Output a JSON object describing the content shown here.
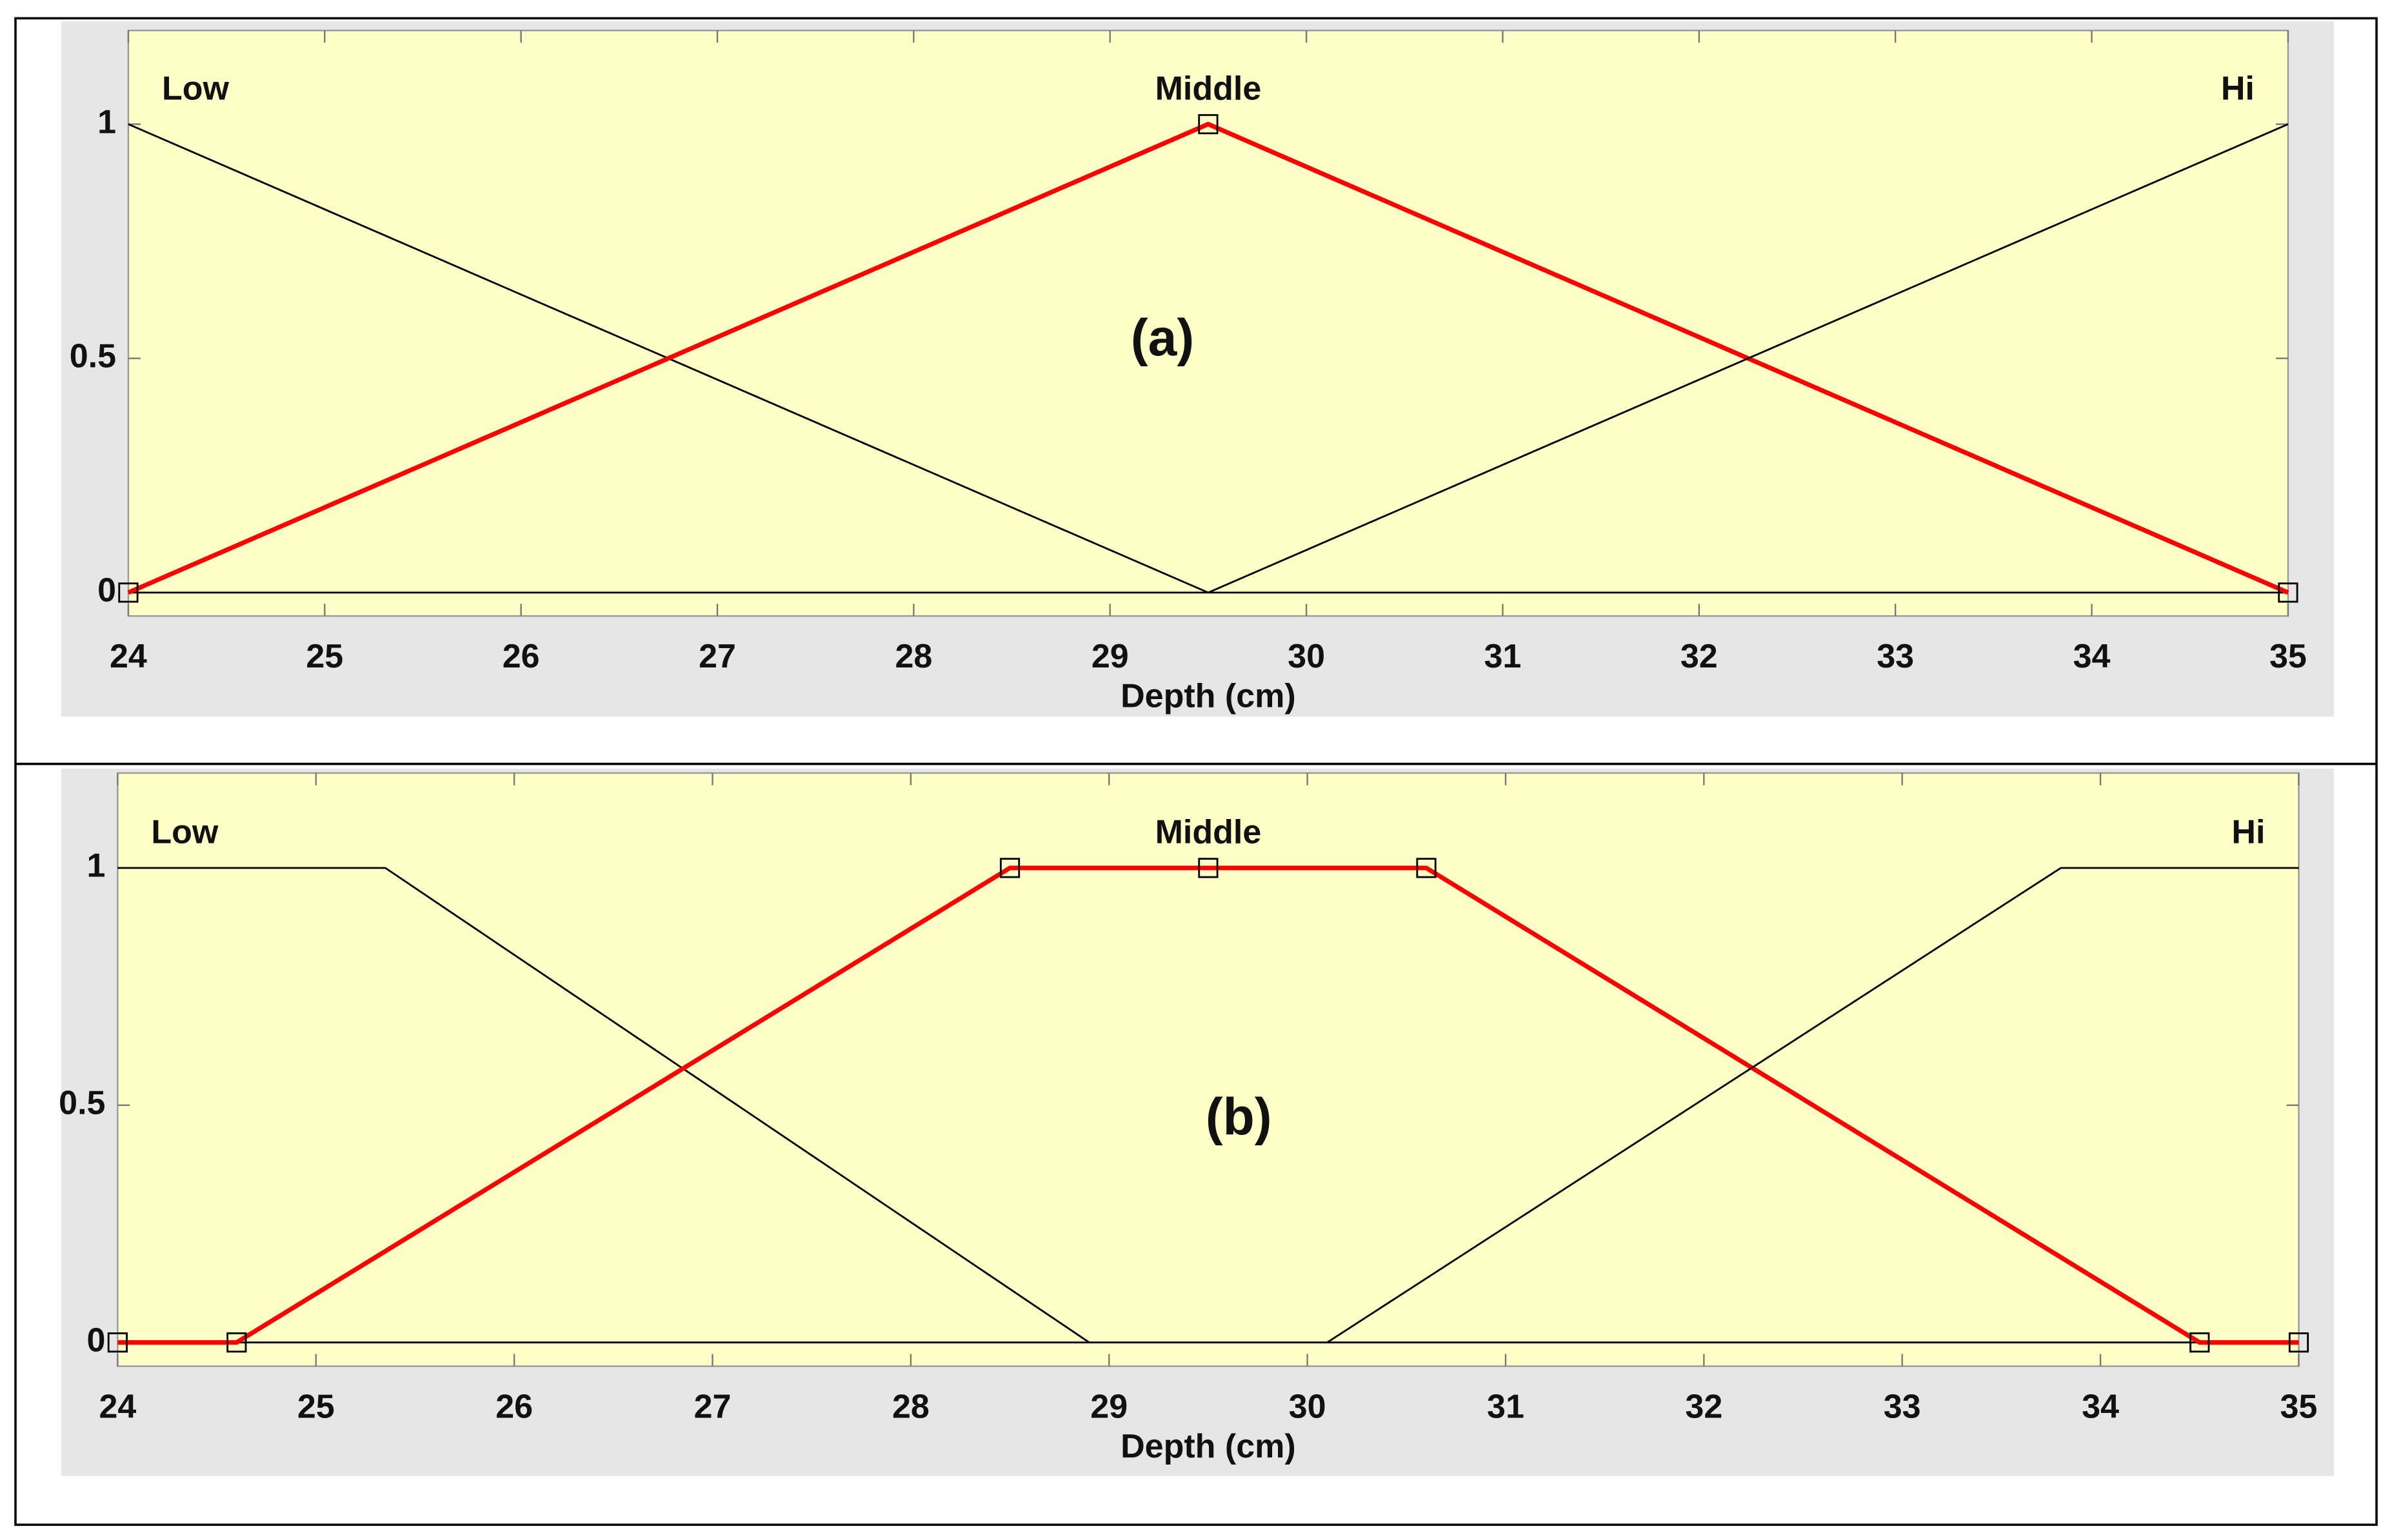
{
  "chart_data": [
    {
      "type": "line",
      "annotation": "(a)",
      "xlabel": "Depth (cm)",
      "xlim": [
        24,
        35
      ],
      "xticks": [
        24,
        25,
        26,
        27,
        28,
        29,
        30,
        31,
        32,
        33,
        34,
        35
      ],
      "ylim": [
        -0.05,
        1.2
      ],
      "yticks": [
        0,
        0.5,
        1
      ],
      "series": [
        {
          "name": "Low",
          "color": "#000000",
          "x": [
            24,
            29.5
          ],
          "values": [
            1,
            0
          ]
        },
        {
          "name": "Middle",
          "color": "#ff0000",
          "markers": true,
          "x": [
            24,
            29.5,
            35
          ],
          "values": [
            0,
            1,
            0
          ]
        },
        {
          "name": "Hi",
          "color": "#000000",
          "x": [
            29.5,
            35
          ],
          "values": [
            0,
            1
          ]
        }
      ]
    },
    {
      "type": "line",
      "annotation": "(b)",
      "xlabel": "Depth (cm)",
      "xlim": [
        24,
        35
      ],
      "xticks": [
        24,
        25,
        26,
        27,
        28,
        29,
        30,
        31,
        32,
        33,
        34,
        35
      ],
      "ylim": [
        -0.05,
        1.2
      ],
      "yticks": [
        0,
        0.5,
        1
      ],
      "series": [
        {
          "name": "Low",
          "color": "#000000",
          "x": [
            24,
            25.35,
            28.9
          ],
          "values": [
            1,
            1,
            0
          ]
        },
        {
          "name": "Middle",
          "color": "#ff0000",
          "markers": true,
          "x": [
            24,
            24.6,
            28.5,
            29.5,
            30.6,
            34.5,
            35
          ],
          "values": [
            0,
            0,
            1,
            1,
            1,
            0,
            0
          ]
        },
        {
          "name": "Hi",
          "color": "#000000",
          "x": [
            30.1,
            33.8,
            35
          ],
          "values": [
            0,
            1,
            1
          ]
        }
      ]
    }
  ]
}
